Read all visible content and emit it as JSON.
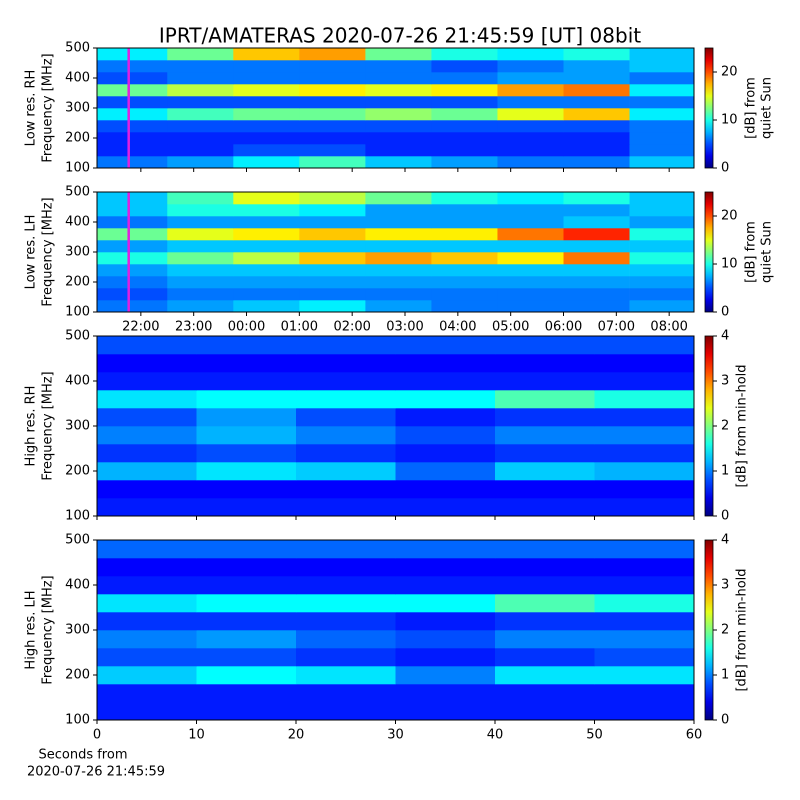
{
  "chart_data": [
    {
      "type": "heatmap",
      "title": "IPRT/AMATERAS 2020-07-26 21:45:59 [UT]   08bit",
      "ylabel": [
        "Low res. RH",
        "Frequency [MHz]"
      ],
      "clabel": [
        "[dB] from",
        "quiet Sun"
      ],
      "x": [
        21.17,
        22.5,
        23.75,
        25,
        26.25,
        27.5,
        28.75,
        30,
        31.25,
        32.47
      ],
      "y": [
        100,
        140,
        180,
        220,
        260,
        300,
        340,
        380,
        420,
        460,
        500
      ],
      "z": [
        [
          6,
          7,
          9,
          11,
          8,
          7,
          6,
          6,
          8
        ],
        [
          4,
          4,
          5,
          5,
          4,
          4,
          4,
          4,
          6
        ],
        [
          4,
          4,
          4,
          4,
          4,
          4,
          4,
          4,
          6
        ],
        [
          5,
          5,
          5,
          5,
          5,
          5,
          5,
          5,
          6
        ],
        [
          9,
          11,
          12,
          12,
          13,
          12,
          15,
          17,
          9
        ],
        [
          5,
          5,
          5,
          5,
          5,
          5,
          6,
          6,
          6
        ],
        [
          12,
          14,
          15,
          16,
          15,
          16,
          18,
          19,
          9
        ],
        [
          5,
          6,
          6,
          6,
          6,
          6,
          7,
          7,
          6
        ],
        [
          6,
          6,
          6,
          6,
          6,
          5,
          6,
          7,
          8
        ],
        [
          9,
          12,
          17,
          18,
          12,
          10,
          9,
          10,
          8
        ]
      ],
      "xlim": [
        21.17,
        32.47
      ],
      "xticks": [
        22,
        23,
        24,
        25,
        26,
        27,
        28,
        29,
        30,
        31,
        32
      ],
      "show_xticklabels": false,
      "ylim": [
        100,
        500
      ],
      "yticks": [
        100,
        200,
        300,
        400,
        500
      ],
      "zlim": [
        0,
        25
      ],
      "zticks": [
        0,
        10,
        20
      ],
      "colormap": "jet",
      "vline": 21.77,
      "vline_color": "#e020e0"
    },
    {
      "type": "heatmap",
      "ylabel": [
        "Low res. LH",
        "Frequency [MHz]"
      ],
      "clabel": [
        "[dB] from",
        "quiet Sun"
      ],
      "x": [
        21.17,
        22.5,
        23.75,
        25,
        26.25,
        27.5,
        28.75,
        30,
        31.25,
        32.47
      ],
      "y": [
        100,
        140,
        180,
        220,
        260,
        300,
        340,
        380,
        420,
        460,
        500
      ],
      "z": [
        [
          6,
          7,
          8,
          9,
          7,
          6,
          6,
          6,
          7
        ],
        [
          5,
          6,
          6,
          6,
          6,
          6,
          6,
          6,
          6
        ],
        [
          6,
          7,
          7,
          7,
          7,
          7,
          7,
          7,
          7
        ],
        [
          7,
          8,
          8,
          8,
          8,
          8,
          8,
          8,
          8
        ],
        [
          10,
          12,
          14,
          17,
          18,
          17,
          16,
          19,
          10
        ],
        [
          7,
          8,
          8,
          8,
          8,
          8,
          8,
          8,
          8
        ],
        [
          12,
          15,
          16,
          17,
          16,
          16,
          19,
          21,
          10
        ],
        [
          6,
          7,
          7,
          7,
          7,
          7,
          7,
          8,
          7
        ],
        [
          8,
          10,
          10,
          9,
          7,
          7,
          7,
          7,
          8
        ],
        [
          8,
          11,
          15,
          14,
          12,
          10,
          9,
          10,
          8
        ]
      ],
      "xlim": [
        21.17,
        32.47
      ],
      "xticks": [
        {
          "value": 22,
          "label": "22:00"
        },
        {
          "value": 23,
          "label": "23:00"
        },
        {
          "value": 24,
          "label": "00:00"
        },
        {
          "value": 25,
          "label": "01:00"
        },
        {
          "value": 26,
          "label": "02:00"
        },
        {
          "value": 27,
          "label": "03:00"
        },
        {
          "value": 28,
          "label": "04:00"
        },
        {
          "value": 29,
          "label": "05:00"
        },
        {
          "value": 30,
          "label": "06:00"
        },
        {
          "value": 31,
          "label": "07:00"
        },
        {
          "value": 32,
          "label": "08:00"
        }
      ],
      "show_xticklabels": true,
      "ylim": [
        100,
        500
      ],
      "yticks": [
        100,
        200,
        300,
        400,
        500
      ],
      "zlim": [
        0,
        25
      ],
      "zticks": [
        0,
        10,
        20
      ],
      "colormap": "jet",
      "vline": 21.77,
      "vline_color": "#e020e0"
    },
    {
      "type": "heatmap",
      "ylabel": [
        "High res. RH",
        "Frequency [MHz]"
      ],
      "clabel": [
        "[dB] from min-hold"
      ],
      "x": [
        0,
        10,
        20,
        30,
        40,
        50,
        60
      ],
      "y": [
        100,
        140,
        180,
        220,
        260,
        300,
        340,
        380,
        420,
        460,
        500
      ],
      "z": [
        [
          0.6,
          0.6,
          0.6,
          0.6,
          0.6,
          0.6
        ],
        [
          0.5,
          0.5,
          0.5,
          0.5,
          0.5,
          0.5
        ],
        [
          1.2,
          1.4,
          1.3,
          0.9,
          1.3,
          1.2
        ],
        [
          0.7,
          0.8,
          0.7,
          0.6,
          0.7,
          0.7
        ],
        [
          1.0,
          1.2,
          1.0,
          0.8,
          1.0,
          1.0
        ],
        [
          0.8,
          1.1,
          0.8,
          0.6,
          0.7,
          0.7
        ],
        [
          1.4,
          1.5,
          1.5,
          1.5,
          1.8,
          1.6
        ],
        [
          0.6,
          0.6,
          0.6,
          0.6,
          0.6,
          0.6
        ],
        [
          0.5,
          0.5,
          0.5,
          0.5,
          0.5,
          0.5
        ],
        [
          0.8,
          0.8,
          0.8,
          0.8,
          0.8,
          0.8
        ]
      ],
      "xlim": [
        0,
        60
      ],
      "xticks": [
        0,
        10,
        20,
        30,
        40,
        50,
        60
      ],
      "show_xticklabels": false,
      "ylim": [
        100,
        500
      ],
      "yticks": [
        100,
        200,
        300,
        400,
        500
      ],
      "zlim": [
        0,
        4
      ],
      "zticks": [
        0,
        1,
        2,
        3,
        4
      ],
      "colormap": "jet"
    },
    {
      "type": "heatmap",
      "ylabel": [
        "High res. LH",
        "Frequency [MHz]"
      ],
      "clabel": [
        "[dB] from min-hold"
      ],
      "xlabel": [
        "Seconds from",
        "2020-07-26 21:45:59"
      ],
      "x": [
        0,
        10,
        20,
        30,
        40,
        50,
        60
      ],
      "y": [
        100,
        140,
        180,
        220,
        260,
        300,
        340,
        380,
        420,
        460,
        500
      ],
      "z": [
        [
          0.6,
          0.6,
          0.6,
          0.6,
          0.6,
          0.6
        ],
        [
          0.6,
          0.6,
          0.6,
          0.6,
          0.6,
          0.6
        ],
        [
          1.3,
          1.5,
          1.4,
          1.0,
          1.4,
          1.4
        ],
        [
          0.8,
          0.8,
          0.7,
          0.6,
          0.7,
          0.8
        ],
        [
          1.0,
          1.1,
          0.9,
          0.8,
          1.0,
          1.0
        ],
        [
          0.7,
          0.7,
          0.7,
          0.6,
          0.7,
          0.7
        ],
        [
          1.4,
          1.5,
          1.5,
          1.5,
          1.8,
          1.6
        ],
        [
          0.6,
          0.6,
          0.6,
          0.6,
          0.6,
          0.6
        ],
        [
          0.5,
          0.5,
          0.5,
          0.5,
          0.5,
          0.5
        ],
        [
          0.9,
          0.9,
          0.9,
          0.9,
          0.9,
          0.9
        ]
      ],
      "xlim": [
        0,
        60
      ],
      "xticks": [
        0,
        10,
        20,
        30,
        40,
        50,
        60
      ],
      "show_xticklabels": true,
      "ylim": [
        100,
        500
      ],
      "yticks": [
        100,
        200,
        300,
        400,
        500
      ],
      "zlim": [
        0,
        4
      ],
      "zticks": [
        0,
        1,
        2,
        3,
        4
      ],
      "colormap": "jet"
    }
  ]
}
